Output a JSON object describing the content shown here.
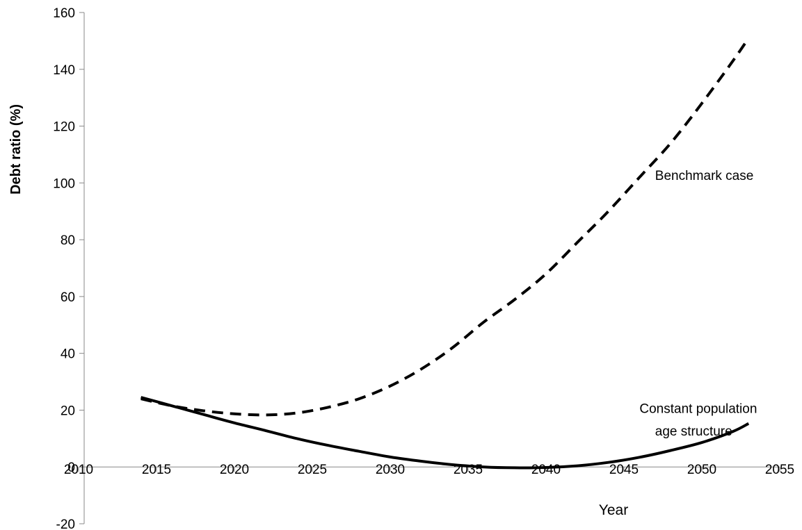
{
  "chart_data": {
    "type": "line",
    "title": "",
    "xlabel": "Year",
    "ylabel": "Debt ratio (%)",
    "xlim": [
      2010,
      2055
    ],
    "ylim": [
      -20,
      160
    ],
    "xticks": [
      2010,
      2015,
      2020,
      2025,
      2030,
      2035,
      2040,
      2045,
      2050,
      2055
    ],
    "yticks": [
      -20,
      0,
      20,
      40,
      60,
      80,
      100,
      120,
      140,
      160
    ],
    "grid": false,
    "series": [
      {
        "name": "Benchmark case",
        "style": "dashed",
        "color": "#000000",
        "x": [
          2014,
          2016,
          2018,
          2020,
          2022,
          2024,
          2026,
          2028,
          2030,
          2032,
          2034,
          2036,
          2038,
          2040,
          2042,
          2044,
          2046,
          2048,
          2050,
          2052,
          2053
        ],
        "y": [
          24,
          21.5,
          19.8,
          18.7,
          18.3,
          19.0,
          21.0,
          24.0,
          28.5,
          34.5,
          42.0,
          51.0,
          59.0,
          68.0,
          79.0,
          90.0,
          102.0,
          114.0,
          128.0,
          143.0,
          151.0
        ]
      },
      {
        "name": "Constant population age structure",
        "style": "solid",
        "color": "#000000",
        "x": [
          2014,
          2016,
          2018,
          2020,
          2022,
          2024,
          2026,
          2028,
          2030,
          2032,
          2034,
          2036,
          2038,
          2040,
          2042,
          2044,
          2046,
          2048,
          2050,
          2052,
          2053
        ],
        "y": [
          24.5,
          21.5,
          18.5,
          15.5,
          12.8,
          10.0,
          7.6,
          5.5,
          3.5,
          2.0,
          0.8,
          0.0,
          -0.3,
          -0.2,
          0.4,
          1.6,
          3.4,
          5.8,
          8.6,
          12.5,
          15.3
        ]
      }
    ],
    "annotations": [
      {
        "text": "Benchmark case",
        "x": 2047,
        "y": 101
      },
      {
        "text": "Constant population",
        "x": 2046,
        "y": 19
      },
      {
        "text": "age structure",
        "x": 2047,
        "y": 11
      }
    ]
  }
}
